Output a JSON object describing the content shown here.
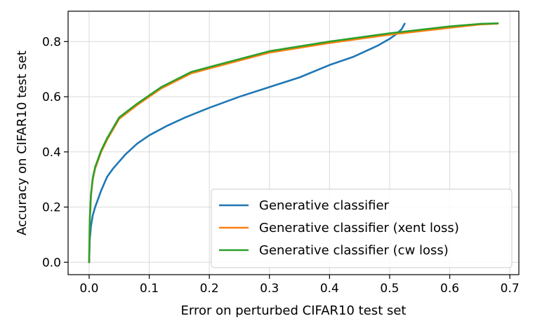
{
  "chart_data": {
    "type": "line",
    "title": "",
    "xlabel": "Error on perturbed CIFAR10 test set",
    "ylabel": "Accuracy on CIFAR10 test set",
    "xlim": [
      -0.035,
      0.715
    ],
    "ylim": [
      -0.045,
      0.91
    ],
    "xticks": [
      0.0,
      0.1,
      0.2,
      0.3,
      0.4,
      0.5,
      0.6,
      0.7
    ],
    "yticks": [
      0.0,
      0.2,
      0.4,
      0.6,
      0.8
    ],
    "xtick_labels": [
      "0.0",
      "0.1",
      "0.2",
      "0.3",
      "0.4",
      "0.5",
      "0.6",
      "0.7"
    ],
    "ytick_labels": [
      "0.0",
      "0.2",
      "0.4",
      "0.6",
      "0.8"
    ],
    "grid": true,
    "legend_position": "lower-right",
    "series": [
      {
        "name": "Generative classifier",
        "color": "#1f77b4",
        "x": [
          0.0,
          0.001,
          0.003,
          0.006,
          0.01,
          0.02,
          0.03,
          0.04,
          0.06,
          0.08,
          0.1,
          0.13,
          0.16,
          0.2,
          0.25,
          0.3,
          0.35,
          0.4,
          0.44,
          0.46,
          0.48,
          0.5,
          0.51,
          0.52,
          0.525
        ],
        "y": [
          0.0,
          0.08,
          0.13,
          0.17,
          0.2,
          0.26,
          0.31,
          0.34,
          0.39,
          0.43,
          0.46,
          0.495,
          0.525,
          0.56,
          0.6,
          0.635,
          0.67,
          0.715,
          0.745,
          0.765,
          0.785,
          0.81,
          0.825,
          0.845,
          0.865
        ]
      },
      {
        "name": "Generative classifier (xent loss)",
        "color": "#ff7f0e",
        "x": [
          0.0,
          0.001,
          0.003,
          0.006,
          0.01,
          0.02,
          0.03,
          0.05,
          0.08,
          0.12,
          0.17,
          0.23,
          0.3,
          0.4,
          0.5,
          0.6,
          0.65,
          0.68
        ],
        "y": [
          0.0,
          0.15,
          0.24,
          0.3,
          0.34,
          0.4,
          0.445,
          0.52,
          0.57,
          0.63,
          0.685,
          0.72,
          0.76,
          0.795,
          0.825,
          0.85,
          0.862,
          0.865
        ]
      },
      {
        "name": "Generative classifier (cw loss)",
        "color": "#2ca02c",
        "x": [
          0.0,
          0.001,
          0.003,
          0.006,
          0.01,
          0.02,
          0.03,
          0.05,
          0.08,
          0.12,
          0.17,
          0.23,
          0.3,
          0.4,
          0.5,
          0.6,
          0.65,
          0.68
        ],
        "y": [
          0.0,
          0.15,
          0.245,
          0.305,
          0.345,
          0.405,
          0.45,
          0.525,
          0.575,
          0.635,
          0.69,
          0.725,
          0.765,
          0.8,
          0.83,
          0.855,
          0.864,
          0.866
        ]
      }
    ]
  }
}
